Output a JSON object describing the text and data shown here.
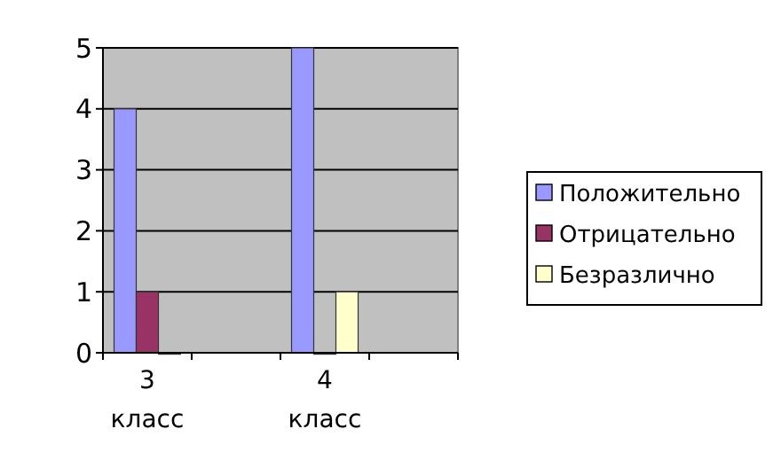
{
  "chart_data": {
    "type": "bar",
    "categories": [
      "3 класс",
      null,
      "4 класс",
      null
    ],
    "series": [
      {
        "name": "Положительно",
        "color": "#9999ff",
        "values": [
          4,
          null,
          5,
          null
        ]
      },
      {
        "name": "Отрицательно",
        "color": "#993366",
        "values": [
          1,
          null,
          0,
          null
        ]
      },
      {
        "name": "Безразлично",
        "color": "#ffffcc",
        "values": [
          0,
          null,
          1,
          null
        ]
      }
    ],
    "ylim": [
      0,
      5
    ],
    "yticks": [
      0,
      1,
      2,
      3,
      4,
      5
    ],
    "grid": "y",
    "legend": "right"
  }
}
